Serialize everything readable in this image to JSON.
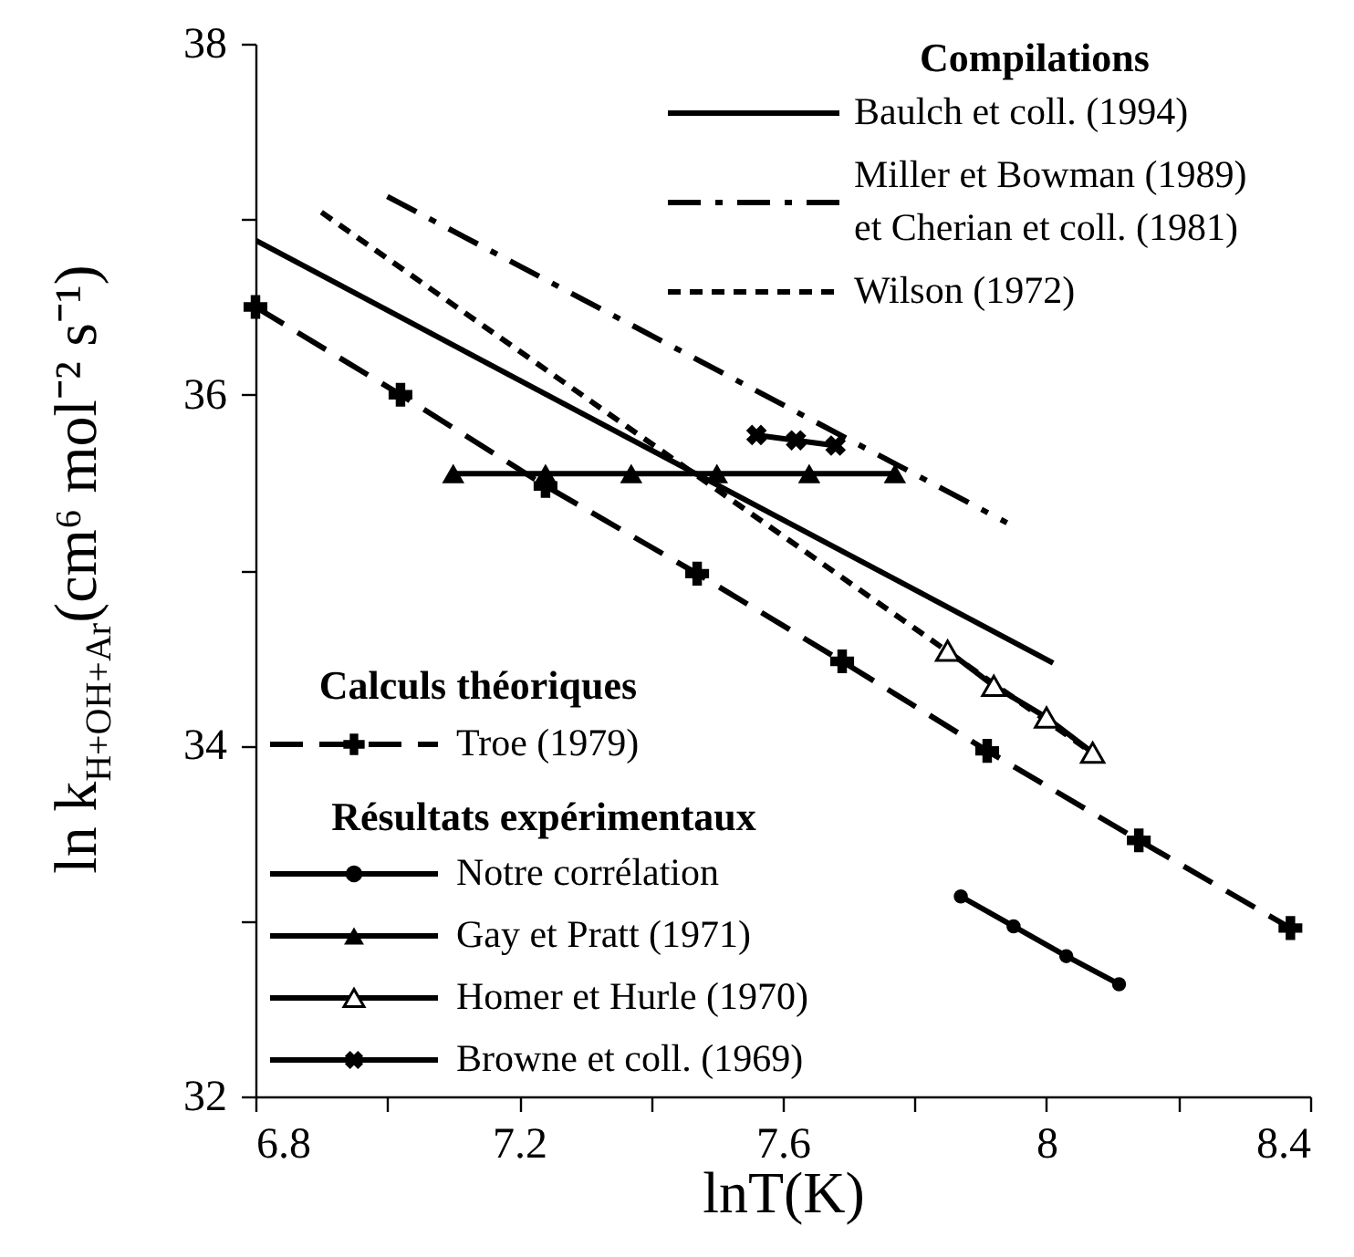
{
  "chart_data": {
    "type": "line",
    "xlabel": "lnT(K)",
    "ylabel": "ln k$_{H+OH+Ar}$(cm⁶ mol⁻² s⁻¹)",
    "xlim": [
      6.8,
      8.4
    ],
    "ylim": [
      32,
      38
    ],
    "xticks": [
      6.8,
      {
        "value": 7.0,
        "label": null
      },
      7.2,
      {
        "value": 7.4,
        "label": null
      },
      7.6,
      {
        "value": 7.8,
        "label": null
      },
      8,
      {
        "value": 8.2,
        "label": null
      },
      8.4
    ],
    "yticks": [
      32,
      {
        "value": 33,
        "label": null
      },
      34,
      {
        "value": 35,
        "label": null
      },
      36,
      {
        "value": 37,
        "label": null
      },
      38
    ],
    "grid": false,
    "legend": "bottom left",
    "annotations": [
      "Compilations",
      "Calculs théoriques",
      "Résultats expérimentaux"
    ],
    "series": [
      {
        "name": "Baulch et coll. (1994)",
        "color": "#000000",
        "line_style": "solid",
        "marker": "none",
        "x": [
          6.8,
          8.01
        ],
        "values": [
          36.88,
          34.47
        ]
      },
      {
        "name": "Miller et Bowman (1989)\net Cherian et coll. (1981)",
        "color": "#000000",
        "line_style": "dashdot",
        "marker": "none",
        "x": [
          7.0,
          7.94
        ],
        "values": [
          37.13,
          35.27
        ]
      },
      {
        "name": "Wilson (1972)",
        "color": "#000000",
        "line_style": "dotted",
        "marker": "none",
        "x": [
          6.9,
          8.08
        ],
        "values": [
          37.04,
          33.93
        ]
      },
      {
        "name": "Troe (1979)",
        "color": "#000000",
        "line_style": "dashed",
        "marker": "plus",
        "x": [
          6.8,
          7.02,
          7.24,
          7.47,
          7.69,
          7.91,
          8.14,
          8.37
        ],
        "values": [
          36.5,
          36.0,
          35.48,
          34.98,
          34.48,
          33.97,
          33.46,
          32.96
        ]
      },
      {
        "name": "Notre corrélation",
        "color": "#000000",
        "line_style": "solid",
        "marker": "circle",
        "x": [
          7.87,
          7.95,
          8.03,
          8.11
        ],
        "values": [
          33.14,
          32.97,
          32.8,
          32.64
        ]
      },
      {
        "name": "Gay et Pratt (1971)",
        "color": "#000000",
        "line_style": "solid",
        "marker": "triangle",
        "x": [
          7.1,
          7.24,
          7.37,
          7.5,
          7.64,
          7.77
        ],
        "values": [
          35.55,
          35.55,
          35.55,
          35.55,
          35.55,
          35.55
        ]
      },
      {
        "name": "Homer et Hurle (1970)",
        "color": "#000000",
        "line_style": "solid",
        "marker": "triangle-open",
        "x": [
          7.85,
          7.92,
          8.0,
          8.07
        ],
        "values": [
          34.54,
          34.34,
          34.16,
          33.96
        ]
      },
      {
        "name": "Browne et coll. (1969)",
        "color": "#000000",
        "line_style": "solid",
        "marker": "cross",
        "x": [
          7.56,
          7.62,
          7.68
        ],
        "values": [
          35.77,
          35.74,
          35.71
        ]
      }
    ]
  }
}
